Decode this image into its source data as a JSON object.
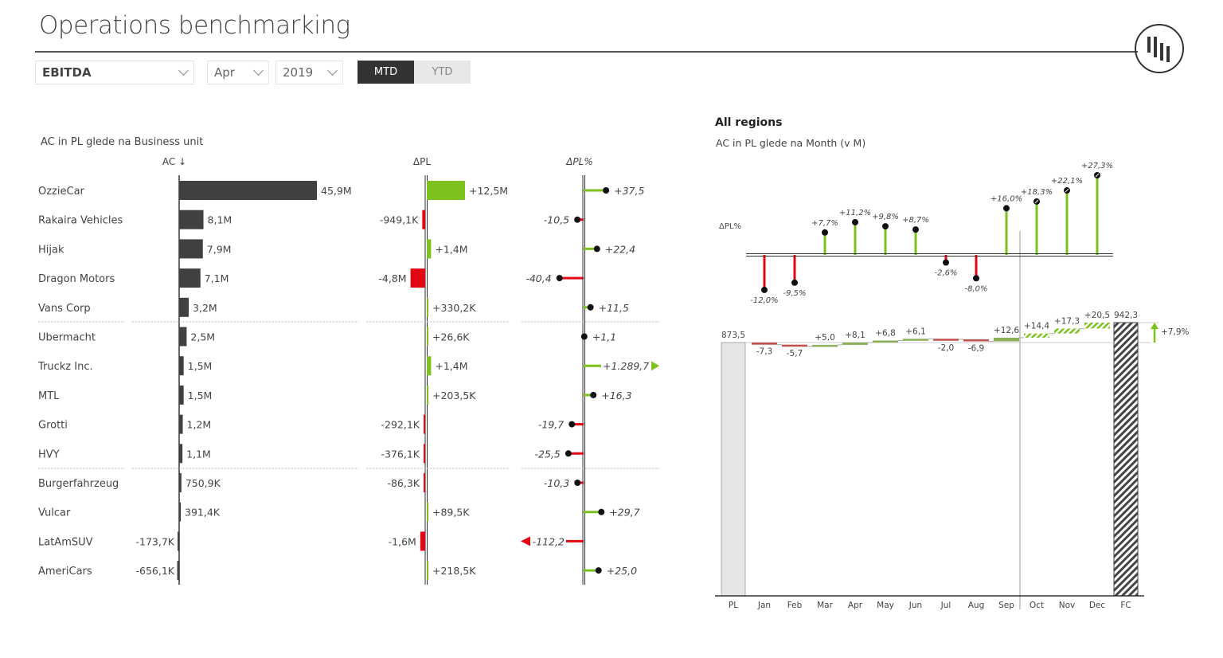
{
  "header": {
    "title": "Operations benchmarking"
  },
  "filters": {
    "measure": "EBITDA",
    "month": "Apr",
    "year": "2019",
    "toggle": [
      "MTD",
      "YTD"
    ],
    "active": "MTD"
  },
  "left": {
    "subtitle": "AC in PL glede na Business unit",
    "col_ac": "AC ↓",
    "col_dpl": "ΔPL",
    "col_dplpct": "ΔPL%",
    "rows": [
      {
        "name": "OzzieCar",
        "ac": 45.9,
        "ac_label": "45,9M",
        "dpl": 12.5,
        "dpl_label": "+12,5M",
        "pct": 37.5,
        "pct_label": "+37,5"
      },
      {
        "name": "Rakaira Vehicles",
        "ac": 8.1,
        "ac_label": "8,1M",
        "dpl": -0.9491,
        "dpl_label": "-949,1K",
        "pct": -10.5,
        "pct_label": "-10,5"
      },
      {
        "name": "Hijak",
        "ac": 7.9,
        "ac_label": "7,9M",
        "dpl": 1.4,
        "dpl_label": "+1,4M",
        "pct": 22.4,
        "pct_label": "+22,4"
      },
      {
        "name": "Dragon Motors",
        "ac": 7.1,
        "ac_label": "7,1M",
        "dpl": -4.8,
        "dpl_label": "-4,8M",
        "pct": -40.4,
        "pct_label": "-40,4"
      },
      {
        "name": "Vans Corp",
        "ac": 3.2,
        "ac_label": "3,2M",
        "dpl": 0.3302,
        "dpl_label": "+330,2K",
        "pct": 11.5,
        "pct_label": "+11,5"
      },
      {
        "name": "Ubermacht",
        "ac": 2.5,
        "ac_label": "2,5M",
        "dpl": 0.0266,
        "dpl_label": "+26,6K",
        "pct": 1.1,
        "pct_label": "+1,1"
      },
      {
        "name": "Truckz Inc.",
        "ac": 1.5,
        "ac_label": "1,5M",
        "dpl": 1.4,
        "dpl_label": "+1,4M",
        "pct": 1289.7,
        "pct_label": "+1.289,7"
      },
      {
        "name": "MTL",
        "ac": 1.5,
        "ac_label": "1,5M",
        "dpl": 0.2035,
        "dpl_label": "+203,5K",
        "pct": 16.3,
        "pct_label": "+16,3"
      },
      {
        "name": "Grotti",
        "ac": 1.2,
        "ac_label": "1,2M",
        "dpl": -0.2921,
        "dpl_label": "-292,1K",
        "pct": -19.7,
        "pct_label": "-19,7"
      },
      {
        "name": "HVY",
        "ac": 1.1,
        "ac_label": "1,1M",
        "dpl": -0.3761,
        "dpl_label": "-376,1K",
        "pct": -25.5,
        "pct_label": "-25,5"
      },
      {
        "name": "Burgerfahrzeug",
        "ac": 0.7509,
        "ac_label": "750,9K",
        "dpl": -0.0863,
        "dpl_label": "-86,3K",
        "pct": -10.3,
        "pct_label": "-10,3"
      },
      {
        "name": "Vulcar",
        "ac": 0.3914,
        "ac_label": "391,4K",
        "dpl": 0.0895,
        "dpl_label": "+89,5K",
        "pct": 29.7,
        "pct_label": "+29,7"
      },
      {
        "name": "LatAmSUV",
        "ac": -0.1737,
        "ac_label": "-173,7K",
        "dpl": -1.6,
        "dpl_label": "-1,6M",
        "pct": -112.2,
        "pct_label": "-112,2"
      },
      {
        "name": "AmeriCars",
        "ac": -0.6561,
        "ac_label": "-656,1K",
        "dpl": 0.2185,
        "dpl_label": "+218,5K",
        "pct": 25.0,
        "pct_label": "+25,0"
      }
    ]
  },
  "right": {
    "title": "All regions",
    "subtitle": "AC in PL glede na Month (v M)",
    "pct_axis_label": "ΔPL%",
    "months": [
      "Jan",
      "Feb",
      "Mar",
      "Apr",
      "May",
      "Jun",
      "Jul",
      "Aug",
      "Sep",
      "Oct",
      "Nov",
      "Dec"
    ],
    "pct": [
      -12.0,
      -9.5,
      7.7,
      11.2,
      9.8,
      8.7,
      -2.6,
      -8.0,
      16.0,
      18.3,
      22.1,
      27.3
    ],
    "pct_labels": [
      "-12,0%",
      "-9,5%",
      "+7,7%",
      "+11,2%",
      "+9,8%",
      "+8,7%",
      "-2,6%",
      "-8,0%",
      "+16,0%",
      "+18,3%",
      "+22,1%",
      "+27,3%"
    ],
    "forecast_from": 9,
    "pl": 873.5,
    "pl_label": "873,5",
    "pl_cat": "PL",
    "fc": 942.3,
    "fc_label": "942,3",
    "fc_cat": "FC",
    "deltas": [
      -7.3,
      -5.7,
      5.0,
      8.1,
      6.8,
      6.1,
      -2.0,
      -6.9,
      12.6,
      14.4,
      17.3,
      20.5
    ],
    "delta_labels": [
      "-7,3",
      "-5,7",
      "+5,0",
      "+8,1",
      "+6,8",
      "+6,1",
      "-2,0",
      "-6,9",
      "+12,6",
      "+14,4",
      "+17,3",
      "+20,5"
    ],
    "total_change_label": "+7,9%"
  },
  "colors": {
    "green": "#7cc11c",
    "red": "#e30613",
    "dark": "#404040",
    "grey": "#e6e6e6"
  }
}
